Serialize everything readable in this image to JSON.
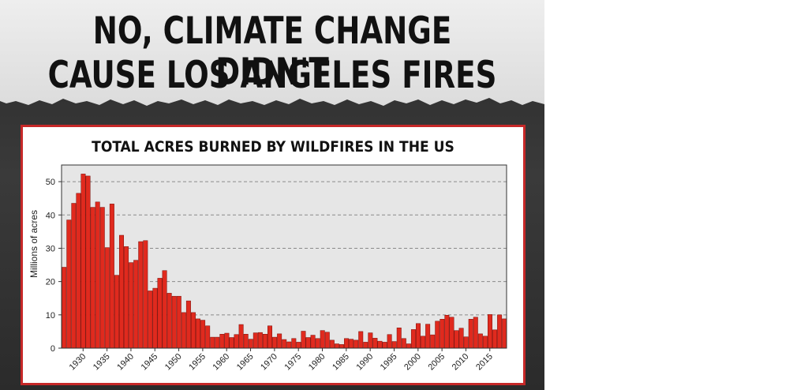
{
  "headline": {
    "line1": "NO, CLIMATE CHANGE DIDN'T",
    "line2": "CAUSE LOS ANGELES FIRES"
  },
  "colors": {
    "bar": "#e02a1e",
    "bar_edge": "#7a0e08",
    "frame": "#c62828",
    "plot_bg": "#e6e6e6"
  },
  "chart_data": {
    "type": "bar",
    "title": "TOTAL ACRES BURNED BY WILDFIRES IN THE US",
    "xlabel": "",
    "ylabel": "Millions of acres",
    "ylim": [
      0,
      55
    ],
    "yticks": [
      0,
      10,
      20,
      30,
      40,
      50
    ],
    "xtick_labels": [
      "1930",
      "1935",
      "1940",
      "1945",
      "1950",
      "1955",
      "1960",
      "1965",
      "1970",
      "1975",
      "1980",
      "1985",
      "1990",
      "1995",
      "2000",
      "2005",
      "2010",
      "2015"
    ],
    "grid": "horizontal dashed",
    "x": [
      1926,
      1927,
      1928,
      1929,
      1930,
      1931,
      1932,
      1933,
      1934,
      1935,
      1936,
      1937,
      1938,
      1939,
      1940,
      1941,
      1942,
      1943,
      1944,
      1945,
      1946,
      1947,
      1948,
      1949,
      1950,
      1951,
      1952,
      1953,
      1954,
      1955,
      1956,
      1957,
      1958,
      1959,
      1960,
      1961,
      1962,
      1963,
      1964,
      1965,
      1966,
      1967,
      1968,
      1969,
      1970,
      1971,
      1972,
      1973,
      1974,
      1975,
      1976,
      1977,
      1978,
      1979,
      1980,
      1981,
      1982,
      1983,
      1984,
      1985,
      1986,
      1987,
      1988,
      1989,
      1990,
      1991,
      1992,
      1993,
      1994,
      1995,
      1996,
      1997,
      1998,
      1999,
      2000,
      2001,
      2002,
      2003,
      2004,
      2005,
      2006,
      2007,
      2008,
      2009,
      2010,
      2011,
      2012,
      2013,
      2014,
      2015,
      2016,
      2017,
      2018
    ],
    "values": [
      24.3,
      38.5,
      43.5,
      46.5,
      52.3,
      51.7,
      42.3,
      43.9,
      42.3,
      30.2,
      43.3,
      21.9,
      33.9,
      30.5,
      25.7,
      26.4,
      32.0,
      32.3,
      17.2,
      18.0,
      21.0,
      23.3,
      16.5,
      15.6,
      15.6,
      10.7,
      14.2,
      10.7,
      8.8,
      8.4,
      6.7,
      3.3,
      3.3,
      4.2,
      4.5,
      3.2,
      4.1,
      7.1,
      4.2,
      2.7,
      4.6,
      4.7,
      4.2,
      6.7,
      3.3,
      4.3,
      2.6,
      1.9,
      2.9,
      1.8,
      5.1,
      3.2,
      3.9,
      2.9,
      5.3,
      4.8,
      2.4,
      1.3,
      1.1,
      2.9,
      2.7,
      2.4,
      5.0,
      1.8,
      4.6,
      3.0,
      2.1,
      1.8,
      4.1,
      2.0,
      6.1,
      2.9,
      1.3,
      5.6,
      7.4,
      3.6,
      7.2,
      4.0,
      8.1,
      8.7,
      9.9,
      9.3,
      5.3,
      6.0,
      3.4,
      8.7,
      9.3,
      4.3,
      3.6,
      10.1,
      5.5,
      10.0,
      8.8
    ]
  }
}
